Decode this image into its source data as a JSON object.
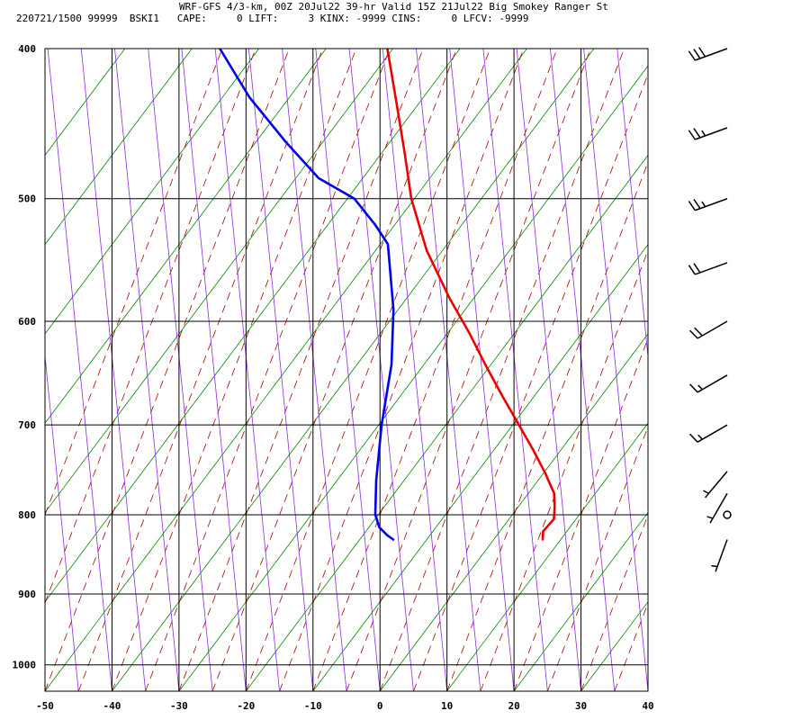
{
  "header": {
    "title_line1": "WRF-GFS 4/3-km, 00Z 20Jul22 39-hr Valid 15Z 21Jul22 Big Smokey Ranger St",
    "title_line2": "220721/1500 99999  BSKI1   CAPE:     0 LIFT:     3 KINX: -9999 CINS:     0 LFCV: -9999"
  },
  "chart_data": {
    "type": "line",
    "diagram": "skew-T log-P",
    "xlabel": "",
    "ylabel": "",
    "x_ticks": [
      -50,
      -40,
      -30,
      -20,
      -10,
      0,
      10,
      20,
      30,
      40
    ],
    "p_ticks": [
      400,
      500,
      600,
      700,
      800,
      900,
      1000
    ],
    "pressure_range": [
      400,
      1040
    ],
    "x_range": [
      -50,
      40
    ],
    "grid": true,
    "series": [
      {
        "color": "#ee0000",
        "points": [
          [
            -20,
            400
          ],
          [
            -17,
            432
          ],
          [
            -14,
            467
          ],
          [
            -11.5,
            500
          ],
          [
            -7.5,
            540
          ],
          [
            -2.5,
            580
          ],
          [
            1.5,
            610
          ],
          [
            5,
            640
          ],
          [
            8.5,
            670
          ],
          [
            12,
            700
          ],
          [
            15,
            727
          ],
          [
            17.5,
            752
          ],
          [
            19.5,
            775
          ],
          [
            20,
            790
          ],
          [
            20.3,
            805
          ],
          [
            19.5,
            815
          ],
          [
            19.1,
            820
          ],
          [
            19.3,
            830
          ]
        ]
      },
      {
        "color": "#0000ee",
        "points": [
          [
            -45,
            400
          ],
          [
            -39,
            430
          ],
          [
            -32,
            460
          ],
          [
            -26,
            485
          ],
          [
            -20,
            500
          ],
          [
            -16,
            520
          ],
          [
            -13.5,
            535
          ],
          [
            -10.5,
            590
          ],
          [
            -9,
            640
          ],
          [
            -8.5,
            700
          ],
          [
            -7.5,
            760
          ],
          [
            -6.5,
            800
          ],
          [
            -5.5,
            815
          ],
          [
            -4,
            825
          ],
          [
            -3,
            830
          ]
        ]
      }
    ],
    "wind_barbs": [
      {
        "p": 400,
        "speed": 30,
        "dir": 250
      },
      {
        "p": 450,
        "speed": 25,
        "dir": 250
      },
      {
        "p": 500,
        "speed": 25,
        "dir": 250
      },
      {
        "p": 550,
        "speed": 20,
        "dir": 250
      },
      {
        "p": 600,
        "speed": 20,
        "dir": 240
      },
      {
        "p": 650,
        "speed": 15,
        "dir": 240
      },
      {
        "p": 700,
        "speed": 15,
        "dir": 240
      },
      {
        "p": 750,
        "speed": 5,
        "dir": 220
      },
      {
        "p": 775,
        "speed": 5,
        "dir": 210
      },
      {
        "p": 800,
        "speed": 0,
        "dir": 0
      },
      {
        "p": 830,
        "speed": 5,
        "dir": 200
      }
    ]
  }
}
